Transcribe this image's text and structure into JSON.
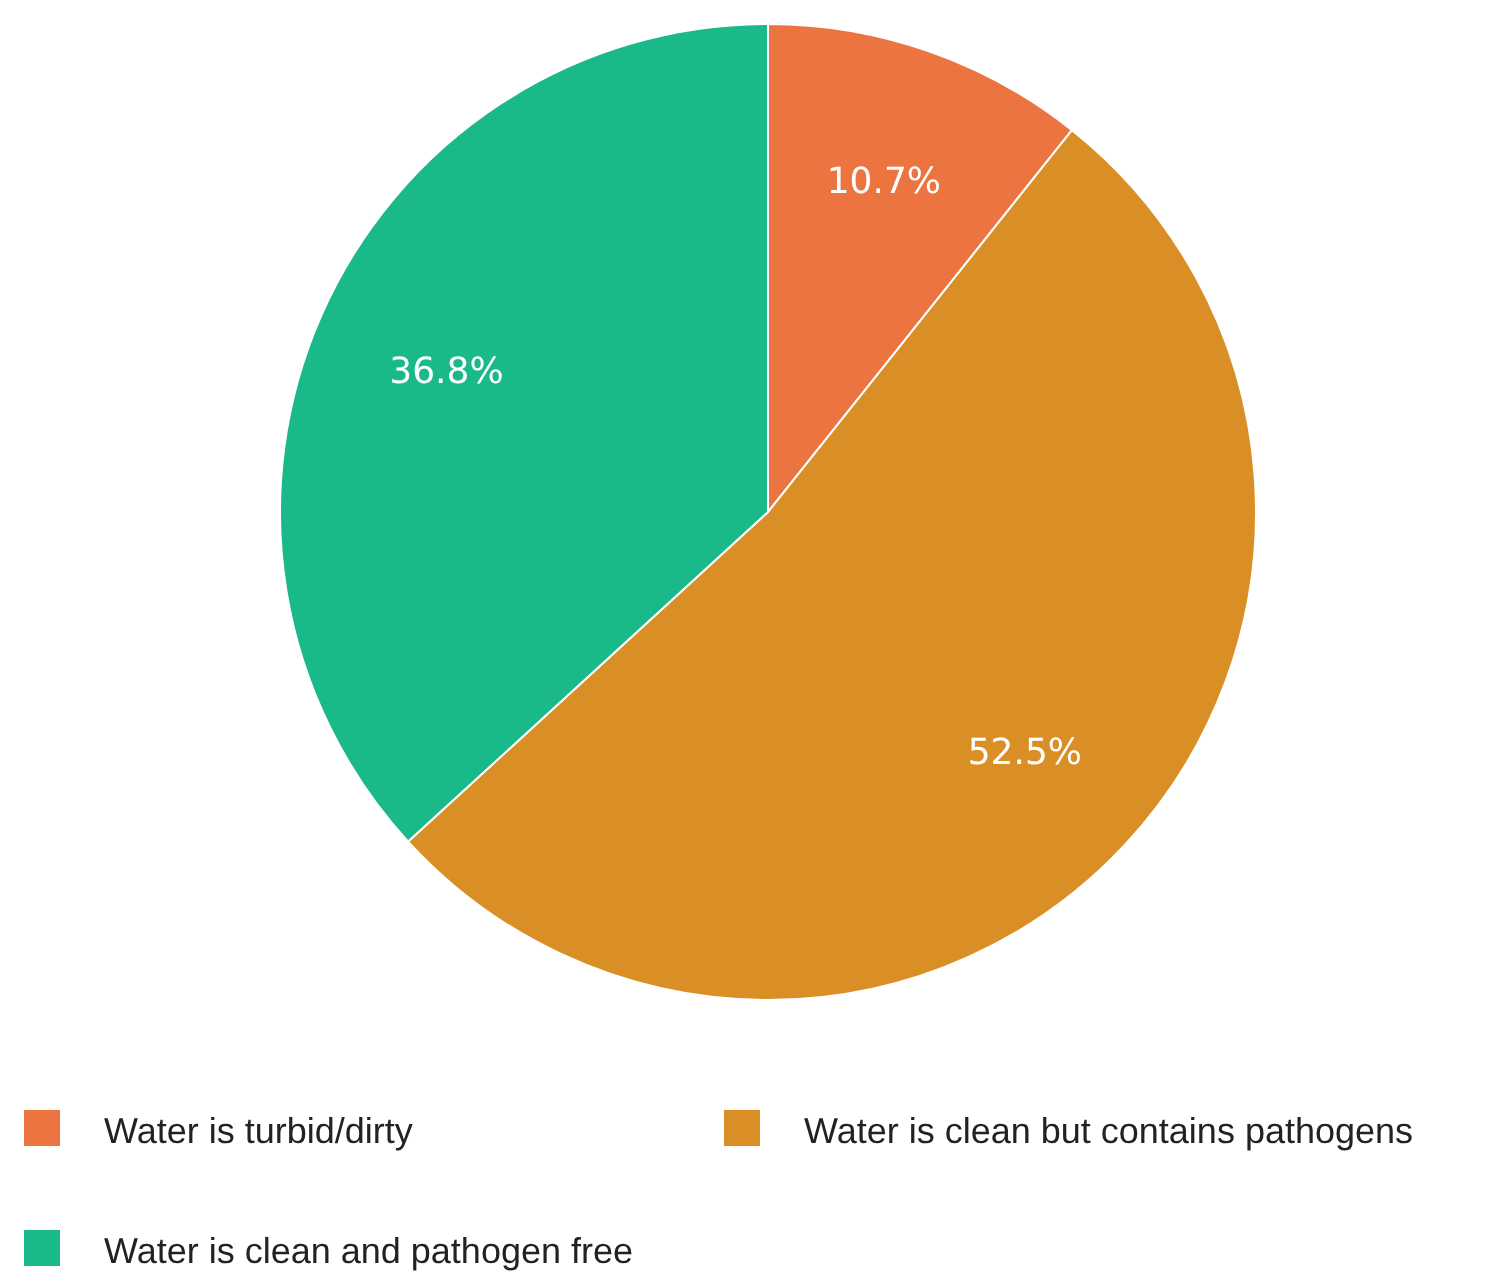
{
  "chart_data": {
    "type": "pie",
    "categories": [
      "Water is turbid/dirty",
      "Water is clean but contains pathogens",
      "Water is clean and pathogen free"
    ],
    "values": [
      10.7,
      52.5,
      36.8
    ],
    "value_labels": [
      "10.7%",
      "52.5%",
      "36.8%"
    ],
    "colors": [
      "#ec7440",
      "#da8f26",
      "#1ab98a"
    ],
    "legend": "bottom"
  }
}
